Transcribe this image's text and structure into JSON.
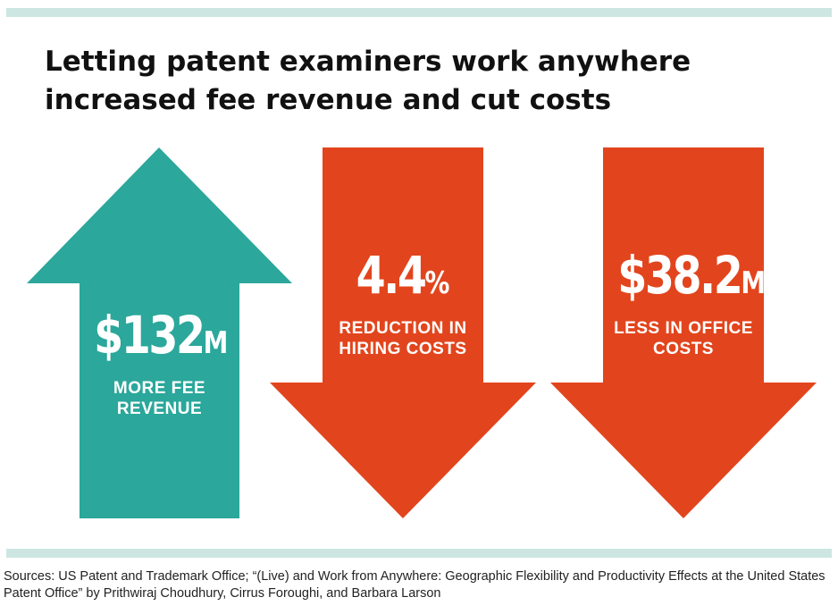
{
  "title": "Letting patent examiners work anywhere increased fee revenue and cut costs",
  "colors": {
    "teal": "#2ba79b",
    "orange": "#e2451d",
    "rule": "#cde6e1"
  },
  "stats": [
    {
      "direction": "up",
      "value": "$132",
      "unit": "M",
      "label_line1": "MORE FEE",
      "label_line2": "REVENUE"
    },
    {
      "direction": "down",
      "value": "4.4",
      "unit": "%",
      "label_line1": "REDUCTION IN",
      "label_line2": "HIRING COSTS"
    },
    {
      "direction": "down",
      "value": "$38.2",
      "unit": "M",
      "label_line1": "LESS IN OFFICE",
      "label_line2": "COSTS"
    }
  ],
  "source": "Sources: US Patent and Trademark Office; “(Live) and Work from Anywhere: Geographic Flexibility and Productivity Effects at the United States Patent Office” by Prithwiraj Choudhury, Cirrus Foroughi, and Barbara Larson"
}
